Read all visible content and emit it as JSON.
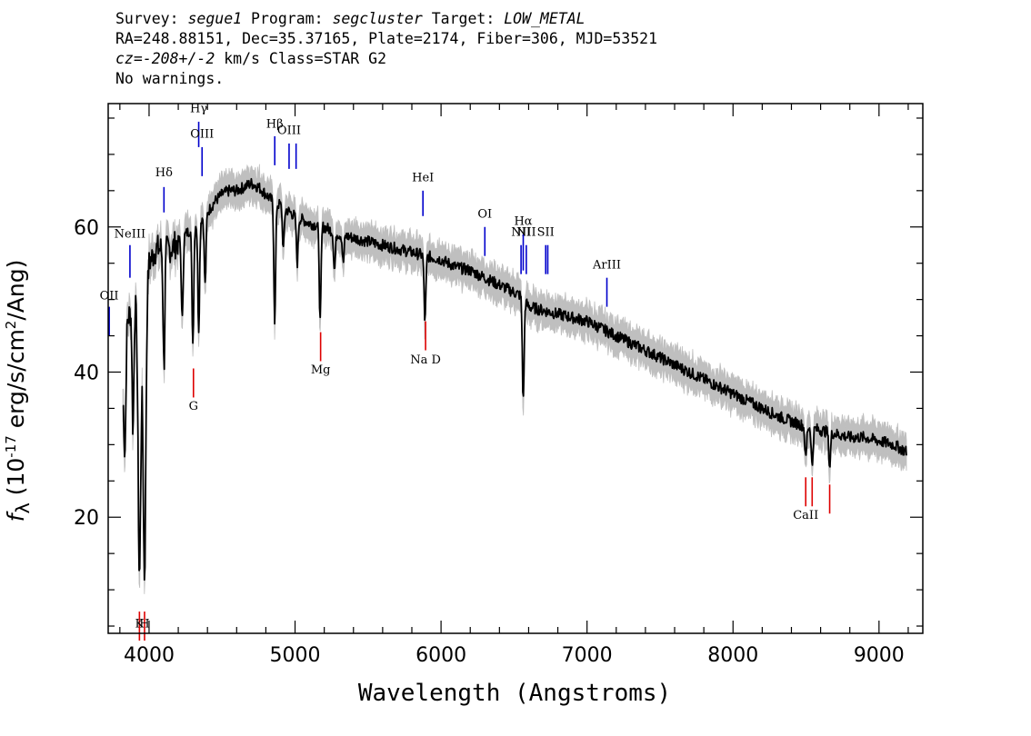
{
  "header": {
    "survey_label": "Survey: ",
    "survey": "segue1",
    "program_label": " Program: ",
    "program": "segcluster",
    "target_label": " Target: ",
    "target": "LOW_METAL",
    "line2": "RA=248.88151, Dec=35.37165, Plate=2174, Fiber=306, MJD=53521",
    "cz_prefix": "cz",
    "cz_eq": "=",
    "cz_value": "-208+/-2",
    "cz_suffix": " km/s Class=STAR G2",
    "line4": "No warnings."
  },
  "axes": {
    "ylabel_f": "f",
    "ylabel_sub": "λ",
    "ylabel_rest": " (10",
    "ylabel_exp": "-17",
    "ylabel_unit": " erg/s/cm",
    "ylabel_exp2": "2",
    "ylabel_tail": "/Ang)"
  },
  "chart_data": {
    "type": "line",
    "xlabel": "Wavelength (Angstroms)",
    "xlim": [
      3720,
      9300
    ],
    "ylim": [
      4,
      77
    ],
    "xticks_major": [
      4000,
      5000,
      6000,
      7000,
      8000,
      9000
    ],
    "yticks_major": [
      20,
      40,
      60
    ],
    "colors": {
      "flux": "#000000",
      "error_band": "#bfbfbf",
      "emission_line": "#0000cc",
      "absorption_line": "#dd0000"
    },
    "continuum": [
      [
        3820,
        36
      ],
      [
        3850,
        47
      ],
      [
        3900,
        50
      ],
      [
        3950,
        47
      ],
      [
        4000,
        55
      ],
      [
        4050,
        57
      ],
      [
        4100,
        57
      ],
      [
        4150,
        57
      ],
      [
        4200,
        58
      ],
      [
        4250,
        59
      ],
      [
        4300,
        60
      ],
      [
        4350,
        61
      ],
      [
        4400,
        62
      ],
      [
        4450,
        63.5
      ],
      [
        4500,
        64.5
      ],
      [
        4550,
        65
      ],
      [
        4600,
        65
      ],
      [
        4650,
        65.5
      ],
      [
        4700,
        66
      ],
      [
        4750,
        65.5
      ],
      [
        4800,
        64.5
      ],
      [
        4850,
        63.5
      ],
      [
        4900,
        63
      ],
      [
        5000,
        61.5
      ],
      [
        5100,
        60.5
      ],
      [
        5200,
        60
      ],
      [
        5300,
        59
      ],
      [
        5400,
        58.5
      ],
      [
        5500,
        58
      ],
      [
        5600,
        57.5
      ],
      [
        5700,
        57
      ],
      [
        5800,
        56.5
      ],
      [
        5900,
        56
      ],
      [
        6000,
        55.5
      ],
      [
        6100,
        54.5
      ],
      [
        6200,
        54
      ],
      [
        6300,
        53
      ],
      [
        6400,
        52
      ],
      [
        6500,
        51
      ],
      [
        6550,
        50.5
      ],
      [
        6600,
        49
      ],
      [
        6700,
        48.5
      ],
      [
        6800,
        48
      ],
      [
        6900,
        47.5
      ],
      [
        7000,
        47
      ],
      [
        7100,
        46
      ],
      [
        7200,
        45
      ],
      [
        7300,
        44
      ],
      [
        7400,
        43
      ],
      [
        7500,
        42
      ],
      [
        7600,
        41
      ],
      [
        7700,
        40
      ],
      [
        7800,
        39
      ],
      [
        7900,
        38
      ],
      [
        8000,
        37
      ],
      [
        8100,
        36
      ],
      [
        8200,
        35
      ],
      [
        8300,
        34
      ],
      [
        8400,
        33.2
      ],
      [
        8500,
        32.5
      ],
      [
        8600,
        32
      ],
      [
        8700,
        31.5
      ],
      [
        8800,
        31
      ],
      [
        8900,
        31
      ],
      [
        9000,
        30.5
      ],
      [
        9100,
        30
      ],
      [
        9190,
        29
      ]
    ],
    "absorption_features": [
      [
        3835,
        29
      ],
      [
        3890,
        32
      ],
      [
        3934,
        12
      ],
      [
        3969,
        12
      ],
      [
        4102,
        41
      ],
      [
        4227,
        47
      ],
      [
        4300,
        44
      ],
      [
        4340,
        46
      ],
      [
        4384,
        52
      ],
      [
        4861,
        47
      ],
      [
        4920,
        57
      ],
      [
        5015,
        55
      ],
      [
        5172,
        47
      ],
      [
        5270,
        54
      ],
      [
        5330,
        55
      ],
      [
        5890,
        47
      ],
      [
        6563,
        36
      ],
      [
        8498,
        28
      ],
      [
        8542,
        27
      ],
      [
        8662,
        27
      ]
    ],
    "emission_lines": [
      {
        "label": "OII",
        "x": 3727,
        "y_top": 49.0,
        "y_bottom": 45.0,
        "label_y": 50.0
      },
      {
        "label": "NeIII",
        "x": 3869,
        "y_top": 57.5,
        "y_bottom": 53.0,
        "label_y": 58.5
      },
      {
        "label": "Hδ",
        "x": 4102,
        "y_top": 65.5,
        "y_bottom": 62.0,
        "label_y": 67.0
      },
      {
        "label": "Hγ",
        "x": 4340,
        "y_top": 74.5,
        "y_bottom": 71.0,
        "label_y": 75.8
      },
      {
        "label": "OIII",
        "x": 4363,
        "y_top": 71.0,
        "y_bottom": 67.0,
        "label_y": 72.3
      },
      {
        "label": "Hβ",
        "x": 4861,
        "y_top": 72.5,
        "y_bottom": 68.5,
        "label_y": 73.7
      },
      {
        "label": "OIII",
        "x": 4959,
        "y_top": 71.5,
        "y_bottom": 68.0,
        "label_y": 72.8
      },
      {
        "label": "",
        "x": 5007,
        "y_top": 71.5,
        "y_bottom": 68.0,
        "label_y": 72.8
      },
      {
        "label": "HeI",
        "x": 5876,
        "y_top": 65.0,
        "y_bottom": 61.5,
        "label_y": 66.3
      },
      {
        "label": "OI",
        "x": 6300,
        "y_top": 60.0,
        "y_bottom": 56.0,
        "label_y": 61.3
      },
      {
        "label": "NII",
        "x": 6548,
        "y_top": 57.5,
        "y_bottom": 53.5,
        "label_y": 58.8
      },
      {
        "label": "Hα",
        "x": 6563,
        "y_top": 59.0,
        "y_bottom": 54.0,
        "label_y": 60.3
      },
      {
        "label": "NII",
        "x": 6584,
        "y_top": 57.5,
        "y_bottom": 53.5,
        "label_y": 58.8
      },
      {
        "label": "SII",
        "x": 6717,
        "y_top": 57.5,
        "y_bottom": 53.5,
        "label_y": 58.8
      },
      {
        "label": "",
        "x": 6731,
        "y_top": 57.5,
        "y_bottom": 53.5,
        "label_y": 58.8
      },
      {
        "label": "ArIII",
        "x": 7136,
        "y_top": 53.0,
        "y_bottom": 49.0,
        "label_y": 54.3
      }
    ],
    "absorption_lines": [
      {
        "label": "K",
        "x": 3934,
        "y_top": 7.0,
        "y_bottom": 3.0,
        "label_y": 4.8
      },
      {
        "label": "H",
        "x": 3969,
        "y_top": 7.0,
        "y_bottom": 3.0,
        "label_y": 4.8
      },
      {
        "label": "G",
        "x": 4304,
        "y_top": 40.5,
        "y_bottom": 36.5,
        "label_y": 34.8
      },
      {
        "label": "Mg",
        "x": 5175,
        "y_top": 45.5,
        "y_bottom": 41.5,
        "label_y": 39.8
      },
      {
        "label": "Na D",
        "x": 5894,
        "y_top": 47.0,
        "y_bottom": 43.0,
        "label_y": 41.2
      },
      {
        "label": "CaII",
        "x": 8498,
        "y_top": 25.5,
        "y_bottom": 21.5,
        "label_y": 19.8
      },
      {
        "label": "",
        "x": 8542,
        "y_top": 25.5,
        "y_bottom": 21.5,
        "label_y": 19.8
      },
      {
        "label": "",
        "x": 8662,
        "y_top": 24.5,
        "y_bottom": 20.5,
        "label_y": 19.8
      }
    ]
  }
}
